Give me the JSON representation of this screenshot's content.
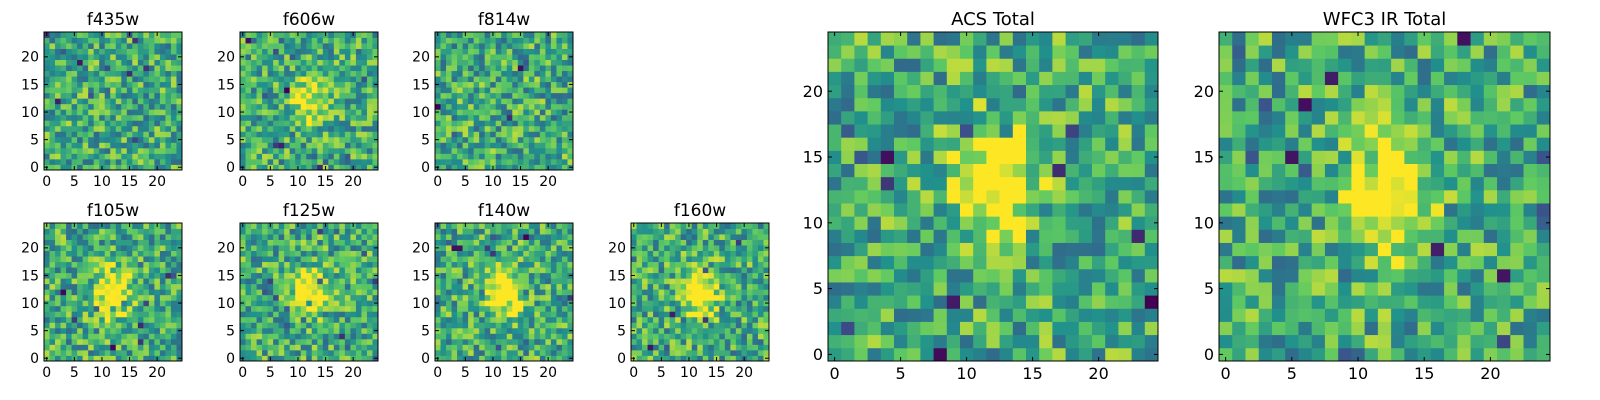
{
  "figure": {
    "colormap": "viridis",
    "colormap_stops": [
      "#440154",
      "#3b528b",
      "#21918c",
      "#5ec962",
      "#fde725"
    ]
  },
  "chart_data": [
    {
      "type": "heatmap",
      "title": "f435w",
      "xlim": [
        -0.5,
        24.5
      ],
      "ylim": [
        -0.5,
        24.5
      ],
      "xticks": [
        0,
        5,
        10,
        15,
        20
      ],
      "yticks": [
        0,
        5,
        10,
        15,
        20
      ],
      "grid": false,
      "origin": "lower",
      "pixels": "25 x 25 noise cutout; no visible source",
      "source_center": null
    },
    {
      "type": "heatmap",
      "title": "f606w",
      "xlim": [
        -0.5,
        24.5
      ],
      "ylim": [
        -0.5,
        24.5
      ],
      "xticks": [
        0,
        5,
        10,
        15,
        20
      ],
      "yticks": [
        0,
        5,
        10,
        15,
        20
      ],
      "grid": false,
      "origin": "lower",
      "pixels": "25 x 25 noise cutout; faint source near center",
      "source_center": [
        12,
        12
      ]
    },
    {
      "type": "heatmap",
      "title": "f814w",
      "xlim": [
        -0.5,
        24.5
      ],
      "ylim": [
        -0.5,
        24.5
      ],
      "xticks": [
        0,
        5,
        10,
        15,
        20
      ],
      "yticks": [
        0,
        5,
        10,
        15,
        20
      ],
      "grid": false,
      "origin": "lower",
      "pixels": "25 x 25 noise cutout; no clear source",
      "source_center": null
    },
    {
      "type": "heatmap",
      "title": "f105w",
      "xlim": [
        -0.5,
        24.5
      ],
      "ylim": [
        -0.5,
        24.5
      ],
      "xticks": [
        0,
        5,
        10,
        15,
        20
      ],
      "yticks": [
        0,
        5,
        10,
        15,
        20
      ],
      "grid": false,
      "origin": "lower",
      "pixels": "25 x 25 cutout; extended bright source at center",
      "source_center": [
        12,
        12
      ]
    },
    {
      "type": "heatmap",
      "title": "f125w",
      "xlim": [
        -0.5,
        24.5
      ],
      "ylim": [
        -0.5,
        24.5
      ],
      "xticks": [
        0,
        5,
        10,
        15,
        20
      ],
      "yticks": [
        0,
        5,
        10,
        15,
        20
      ],
      "grid": false,
      "origin": "lower",
      "pixels": "25 x 25 cutout; source at center",
      "source_center": [
        12,
        12
      ]
    },
    {
      "type": "heatmap",
      "title": "f140w",
      "xlim": [
        -0.5,
        24.5
      ],
      "ylim": [
        -0.5,
        24.5
      ],
      "xticks": [
        0,
        5,
        10,
        15,
        20
      ],
      "yticks": [
        0,
        5,
        10,
        15,
        20
      ],
      "grid": false,
      "origin": "lower",
      "pixels": "25 x 25 cutout; extended source at center",
      "source_center": [
        12,
        12
      ]
    },
    {
      "type": "heatmap",
      "title": "f160w",
      "xlim": [
        -0.5,
        24.5
      ],
      "ylim": [
        -0.5,
        24.5
      ],
      "xticks": [
        0,
        5,
        10,
        15,
        20
      ],
      "yticks": [
        0,
        5,
        10,
        15,
        20
      ],
      "grid": false,
      "origin": "lower",
      "pixels": "25 x 25 cutout; compact source at center",
      "source_center": [
        12,
        12
      ]
    },
    {
      "type": "heatmap",
      "title": "ACS Total",
      "xlim": [
        -0.5,
        24.5
      ],
      "ylim": [
        -0.5,
        24.5
      ],
      "xticks": [
        0,
        5,
        10,
        15,
        20
      ],
      "yticks": [
        0,
        5,
        10,
        15,
        20
      ],
      "grid": false,
      "origin": "lower",
      "pixels": "25 x 25 stacked cutout; elongated bright source near center",
      "source_center": [
        12,
        13
      ]
    },
    {
      "type": "heatmap",
      "title": "WFC3 IR Total",
      "xlim": [
        -0.5,
        24.5
      ],
      "ylim": [
        -0.5,
        24.5
      ],
      "xticks": [
        0,
        5,
        10,
        15,
        20
      ],
      "yticks": [
        0,
        5,
        10,
        15,
        20
      ],
      "grid": false,
      "origin": "lower",
      "pixels": "25 x 25 stacked cutout; bright elongated source at center",
      "source_center": [
        12,
        12
      ]
    }
  ]
}
